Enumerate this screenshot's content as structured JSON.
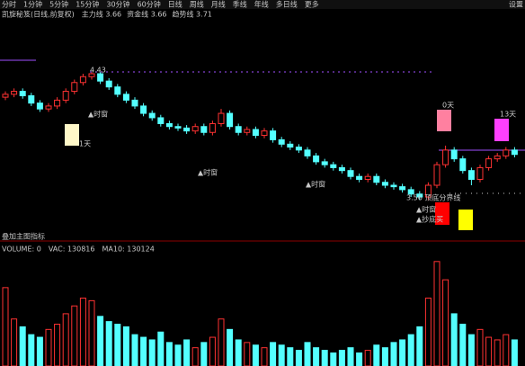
{
  "toolbar": {
    "tabs": [
      "分时",
      "1分钟",
      "5分钟",
      "15分钟",
      "30分钟",
      "60分钟",
      "日线",
      "周线",
      "月线",
      "季线",
      "年线",
      "多日线",
      "更多"
    ],
    "right": "设置"
  },
  "indicator_header": {
    "title": "凯旋秘笈(日线,前复权)",
    "items": [
      "主力线 3.66",
      "资金线 3.66",
      "趋势线 3.71"
    ]
  },
  "chart_data": {
    "type": "candlestick",
    "open": [
      4.26,
      4.28,
      4.3,
      4.27,
      4.22,
      4.18,
      4.2,
      4.24,
      4.3,
      4.36,
      4.4,
      4.42,
      4.37,
      4.33,
      4.28,
      4.24,
      4.2,
      4.15,
      4.12,
      4.08,
      4.06,
      4.05,
      4.03,
      4.06,
      4.02,
      4.08,
      4.15,
      4.06,
      4.02,
      4.04,
      4.0,
      4.03,
      3.97,
      3.94,
      3.92,
      3.9,
      3.86,
      3.82,
      3.8,
      3.78,
      3.76,
      3.72,
      3.7,
      3.72,
      3.68,
      3.66,
      3.65,
      3.63,
      3.6,
      3.58,
      3.66,
      3.8,
      3.9,
      3.84,
      3.76,
      3.7,
      3.78,
      3.84,
      3.86,
      3.9
    ],
    "high": [
      4.3,
      4.32,
      4.32,
      4.29,
      4.24,
      4.22,
      4.26,
      4.32,
      4.38,
      4.42,
      4.43,
      4.43,
      4.39,
      4.35,
      4.3,
      4.26,
      4.22,
      4.17,
      4.14,
      4.1,
      4.08,
      4.07,
      4.08,
      4.08,
      4.1,
      4.18,
      4.17,
      4.08,
      4.06,
      4.06,
      4.05,
      4.05,
      3.99,
      3.96,
      3.94,
      3.92,
      3.88,
      3.84,
      3.82,
      3.8,
      3.78,
      3.74,
      3.74,
      3.74,
      3.7,
      3.68,
      3.67,
      3.65,
      3.62,
      3.68,
      3.82,
      3.93,
      3.92,
      3.86,
      3.78,
      3.8,
      3.86,
      3.88,
      3.92,
      3.92
    ],
    "low": [
      4.24,
      4.26,
      4.25,
      4.2,
      4.16,
      4.16,
      4.18,
      4.22,
      4.28,
      4.34,
      4.38,
      4.35,
      4.31,
      4.26,
      4.22,
      4.18,
      4.13,
      4.1,
      4.06,
      4.04,
      4.03,
      4.01,
      4.01,
      4.0,
      4.0,
      4.06,
      4.04,
      4.0,
      4.0,
      3.98,
      3.98,
      3.95,
      3.92,
      3.9,
      3.88,
      3.84,
      3.8,
      3.78,
      3.76,
      3.74,
      3.7,
      3.68,
      3.68,
      3.66,
      3.64,
      3.63,
      3.61,
      3.58,
      3.56,
      3.56,
      3.64,
      3.78,
      3.82,
      3.74,
      3.66,
      3.68,
      3.76,
      3.82,
      3.84,
      3.85
    ],
    "close": [
      4.28,
      4.3,
      4.27,
      4.22,
      4.18,
      4.2,
      4.24,
      4.3,
      4.36,
      4.4,
      4.42,
      4.37,
      4.33,
      4.28,
      4.24,
      4.2,
      4.15,
      4.12,
      4.08,
      4.06,
      4.05,
      4.03,
      4.06,
      4.02,
      4.08,
      4.15,
      4.06,
      4.02,
      4.04,
      4.0,
      4.03,
      3.97,
      3.94,
      3.92,
      3.9,
      3.86,
      3.82,
      3.8,
      3.78,
      3.76,
      3.72,
      3.7,
      3.72,
      3.68,
      3.66,
      3.65,
      3.63,
      3.6,
      3.58,
      3.66,
      3.8,
      3.9,
      3.84,
      3.76,
      3.7,
      3.78,
      3.84,
      3.86,
      3.9,
      3.87
    ],
    "volume": [
      300000,
      180000,
      150000,
      120000,
      110000,
      140000,
      160000,
      200000,
      230000,
      260000,
      250000,
      190000,
      170000,
      160000,
      150000,
      120000,
      110000,
      100000,
      130000,
      90000,
      80000,
      100000,
      70000,
      90000,
      110000,
      180000,
      140000,
      100000,
      90000,
      80000,
      70000,
      90000,
      80000,
      70000,
      60000,
      90000,
      70000,
      60000,
      50000,
      60000,
      70000,
      50000,
      60000,
      80000,
      70000,
      90000,
      100000,
      120000,
      150000,
      260000,
      400000,
      330000,
      200000,
      160000,
      120000,
      140000,
      110000,
      100000,
      120000,
      100000
    ],
    "ylim": [
      3.28,
      4.8
    ],
    "volume_ylim": [
      0,
      420000
    ],
    "up_color": "#ff3232",
    "down_color": "#54ffff",
    "annotations": [
      "4.43",
      "▲时窗",
      "▲时窗",
      "▲时窗",
      "▲时窗",
      "1天",
      "0天",
      "13天",
      "3.56 顶底分界线",
      "▲抄底买"
    ],
    "main_label": "叠加主图指标",
    "volume_header": [
      "VOLUME: 0",
      "VAC: 130816",
      "MA10: 130124"
    ]
  }
}
